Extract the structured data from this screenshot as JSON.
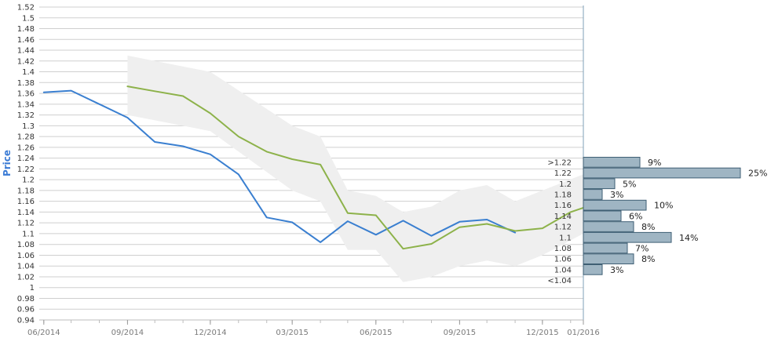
{
  "chart_data": {
    "type": "line",
    "ylabel": "Price",
    "ylim": [
      0.94,
      1.52
    ],
    "y_ticks": [
      "0.94",
      "0.96",
      "0.98",
      "1",
      "1.02",
      "1.04",
      "1.06",
      "1.08",
      "1.1",
      "1.12",
      "1.14",
      "1.16",
      "1.18",
      "1.2",
      "1.22",
      "1.24",
      "1.26",
      "1.28",
      "1.3",
      "1.32",
      "1.34",
      "1.36",
      "1.38",
      "1.4",
      "1.42",
      "1.44",
      "1.46",
      "1.48",
      "1.5",
      "1.52"
    ],
    "x_ticks": [
      "06/2014",
      "09/2014",
      "12/2014",
      "03/2015",
      "06/2015",
      "09/2015",
      "12/2015",
      "01/2016"
    ],
    "x_range": [
      "2014-06",
      "2016-01"
    ],
    "grid": true,
    "series": [
      {
        "role": "actual",
        "color": "#3a7fd0",
        "points": [
          [
            "2014-06-01",
            1.362
          ],
          [
            "2014-07-01",
            1.365
          ],
          [
            "2014-08-01",
            1.34
          ],
          [
            "2014-09-01",
            1.315
          ],
          [
            "2014-10-01",
            1.27
          ],
          [
            "2014-11-01",
            1.262
          ],
          [
            "2014-12-01",
            1.247
          ],
          [
            "2015-01-01",
            1.21
          ],
          [
            "2015-02-01",
            1.13
          ],
          [
            "2015-03-01",
            1.121
          ],
          [
            "2015-04-01",
            1.084
          ],
          [
            "2015-05-01",
            1.123
          ],
          [
            "2015-06-01",
            1.098
          ],
          [
            "2015-07-01",
            1.124
          ],
          [
            "2015-08-01",
            1.096
          ],
          [
            "2015-09-01",
            1.122
          ],
          [
            "2015-10-01",
            1.126
          ],
          [
            "2015-11-01",
            1.102
          ]
        ]
      },
      {
        "role": "forecast",
        "color": "#8db24a",
        "points": [
          [
            "2014-09-01",
            1.373
          ],
          [
            "2014-10-01",
            1.364
          ],
          [
            "2014-11-01",
            1.355
          ],
          [
            "2014-12-01",
            1.323
          ],
          [
            "2015-01-01",
            1.28
          ],
          [
            "2015-02-01",
            1.252
          ],
          [
            "2015-03-01",
            1.238
          ],
          [
            "2015-04-01",
            1.228
          ],
          [
            "2015-05-01",
            1.138
          ],
          [
            "2015-06-01",
            1.134
          ],
          [
            "2015-07-01",
            1.072
          ],
          [
            "2015-08-01",
            1.081
          ],
          [
            "2015-09-01",
            1.112
          ],
          [
            "2015-10-01",
            1.118
          ],
          [
            "2015-11-01",
            1.105
          ],
          [
            "2015-12-01",
            1.11
          ],
          [
            "2016-01-01",
            1.14
          ],
          [
            "2016-01-15",
            1.148
          ]
        ]
      }
    ],
    "band": {
      "color": "#efefef",
      "upper": [
        [
          "2014-09-01",
          1.43
        ],
        [
          "2014-12-01",
          1.4
        ],
        [
          "2015-03-01",
          1.3
        ],
        [
          "2015-04-01",
          1.28
        ],
        [
          "2015-05-01",
          1.18
        ],
        [
          "2015-06-01",
          1.17
        ],
        [
          "2015-07-01",
          1.14
        ],
        [
          "2015-08-01",
          1.15
        ],
        [
          "2015-09-01",
          1.18
        ],
        [
          "2015-10-01",
          1.19
        ],
        [
          "2015-11-01",
          1.16
        ],
        [
          "2015-12-01",
          1.18
        ],
        [
          "2016-01-15",
          1.21
        ]
      ],
      "lower": [
        [
          "2014-09-01",
          1.32
        ],
        [
          "2014-12-01",
          1.29
        ],
        [
          "2015-03-01",
          1.18
        ],
        [
          "2015-04-01",
          1.16
        ],
        [
          "2015-05-01",
          1.07
        ],
        [
          "2015-06-01",
          1.07
        ],
        [
          "2015-07-01",
          1.01
        ],
        [
          "2015-08-01",
          1.02
        ],
        [
          "2015-09-01",
          1.04
        ],
        [
          "2015-10-01",
          1.05
        ],
        [
          "2015-11-01",
          1.04
        ],
        [
          "2015-12-01",
          1.06
        ],
        [
          "2016-01-15",
          1.1
        ]
      ]
    },
    "distribution": {
      "type": "bar",
      "bar_color": "#9fb5c3",
      "bins": [
        {
          "label": ">1.22",
          "pct": 9,
          "pct_label": "9%"
        },
        {
          "label": "1.22",
          "pct": 25,
          "pct_label": "25%"
        },
        {
          "label": "1.2",
          "pct": 5,
          "pct_label": "5%"
        },
        {
          "label": "1.18",
          "pct": 3,
          "pct_label": "3%"
        },
        {
          "label": "1.16",
          "pct": 10,
          "pct_label": "10%"
        },
        {
          "label": "1.14",
          "pct": 6,
          "pct_label": "6%"
        },
        {
          "label": "1.12",
          "pct": 8,
          "pct_label": "8%"
        },
        {
          "label": "1.1",
          "pct": 14,
          "pct_label": "14%"
        },
        {
          "label": "1.08",
          "pct": 7,
          "pct_label": "7%"
        },
        {
          "label": "1.06",
          "pct": 8,
          "pct_label": "8%"
        },
        {
          "label": "1.04",
          "pct": 3,
          "pct_label": "3%"
        },
        {
          "label": "<1.04",
          "pct": 0,
          "pct_label": ""
        }
      ]
    }
  }
}
